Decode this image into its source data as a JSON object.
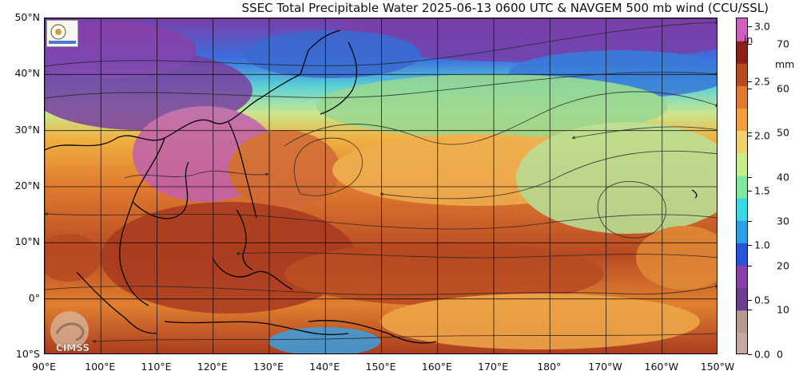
{
  "title": "SSEC Total Precipitable Water  2025-06-13 0600 UTC & NAVGEM 500 mb wind (CCU/SSL)",
  "lat_labels": [
    "50°N",
    "40°N",
    "30°N",
    "20°N",
    "10°N",
    "0°",
    "10°S"
  ],
  "lon_labels": [
    "90°E",
    "100°E",
    "110°E",
    "120°E",
    "130°E",
    "140°E",
    "150°E",
    "160°E",
    "170°E",
    "180°",
    "170°W",
    "160°W",
    "150°W"
  ],
  "colorbar": {
    "inch_ticks": [
      "3.0",
      "2.5",
      "2.0",
      "1.5",
      "1.0",
      "0.5",
      "0.0"
    ],
    "mm_ticks": [
      "70",
      "60",
      "50",
      "40",
      "30",
      "20",
      "10",
      "0"
    ],
    "unit_in": "in",
    "unit_mm": "mm",
    "colors": [
      "#c8a7a0",
      "#b39a8e",
      "#6b3f8c",
      "#8a3fa8",
      "#2a54d8",
      "#2aa0e8",
      "#3ad8e0",
      "#7ee8a0",
      "#c8ec8a",
      "#f0d070",
      "#f0a040",
      "#e07a30",
      "#b84820",
      "#8a2018",
      "#d060c0"
    ]
  },
  "logos": {
    "cimss": "CIMSS",
    "ssec_caption": "SSEC"
  },
  "map_extent": {
    "lon_min": 90,
    "lon_max": 210,
    "lat_min": -10,
    "lat_max": 50
  }
}
